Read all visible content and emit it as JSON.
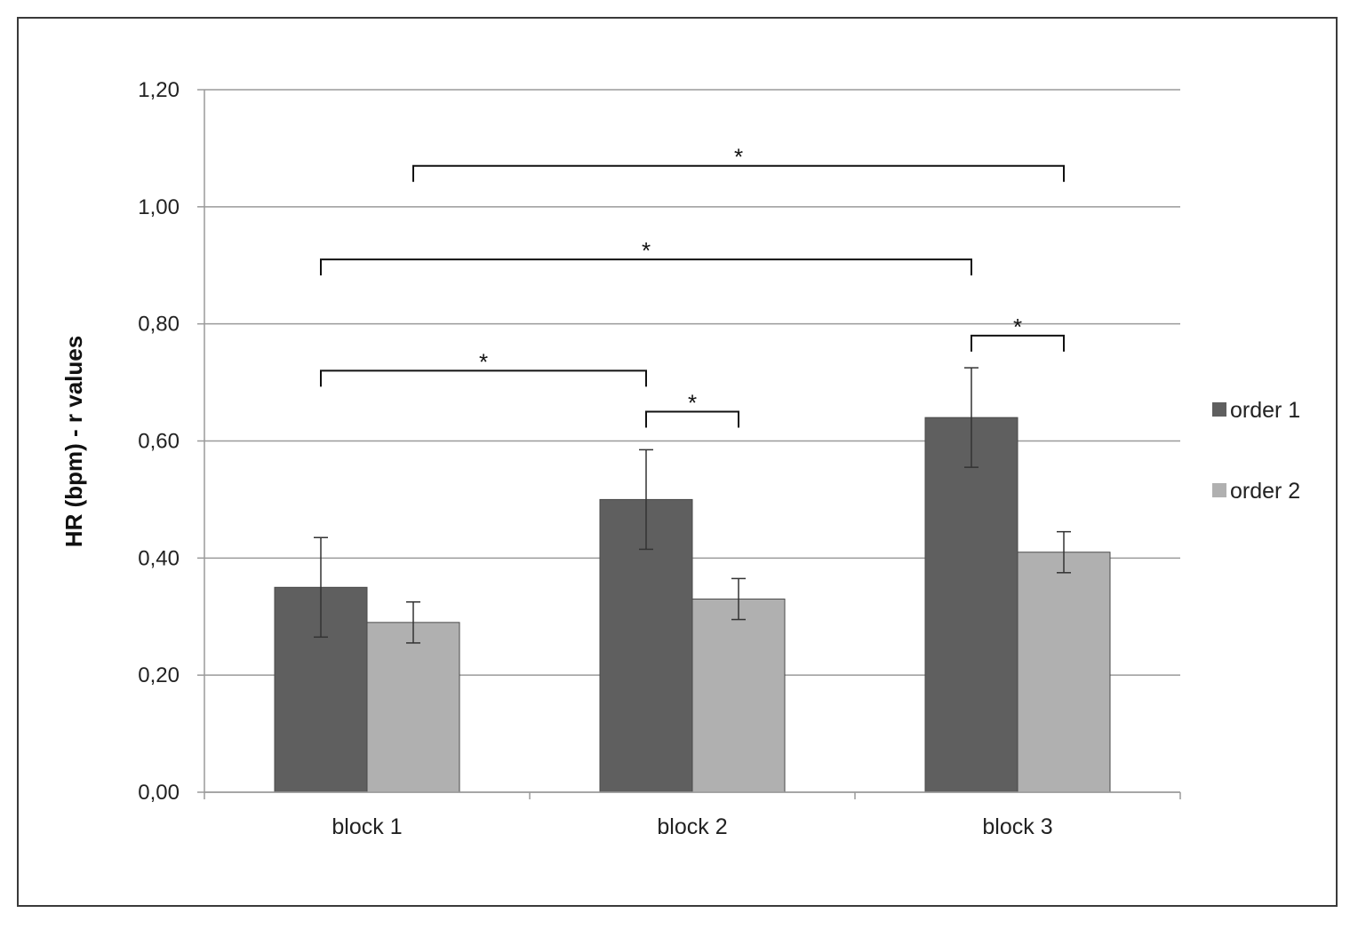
{
  "chart_data": {
    "type": "bar",
    "ylabel": "HR (bpm) - r values",
    "xlabel": "",
    "ylim": [
      0,
      1.2
    ],
    "yticks": [
      "0,00",
      "0,20",
      "0,40",
      "0,60",
      "0,80",
      "1,00",
      "1,20"
    ],
    "grid": true,
    "legend_position": "right",
    "categories": [
      "block 1",
      "block 2",
      "block 3"
    ],
    "series": [
      {
        "name": "order 1",
        "color": "#5f5f5f",
        "values": [
          0.35,
          0.5,
          0.64
        ],
        "errors": [
          0.085,
          0.085,
          0.085
        ]
      },
      {
        "name": "order 2",
        "color": "#b0b0b0",
        "values": [
          0.29,
          0.33,
          0.41
        ],
        "errors": [
          0.035,
          0.035,
          0.035
        ]
      }
    ],
    "significance": [
      {
        "from": "block 1 / order 1",
        "to": "block 2 / order 1",
        "y": 0.72,
        "label": "*"
      },
      {
        "from": "block 2 / order 1",
        "to": "block 2 / order 2",
        "y": 0.65,
        "label": "*"
      },
      {
        "from": "block 1 / order 1",
        "to": "block 3 / order 1",
        "y": 0.91,
        "label": "*"
      },
      {
        "from": "block 3 / order 1",
        "to": "block 3 / order 2",
        "y": 0.78,
        "label": "*"
      },
      {
        "from": "block 1 / order 2",
        "to": "block 3 / order 2",
        "y": 1.07,
        "label": "*"
      }
    ]
  }
}
